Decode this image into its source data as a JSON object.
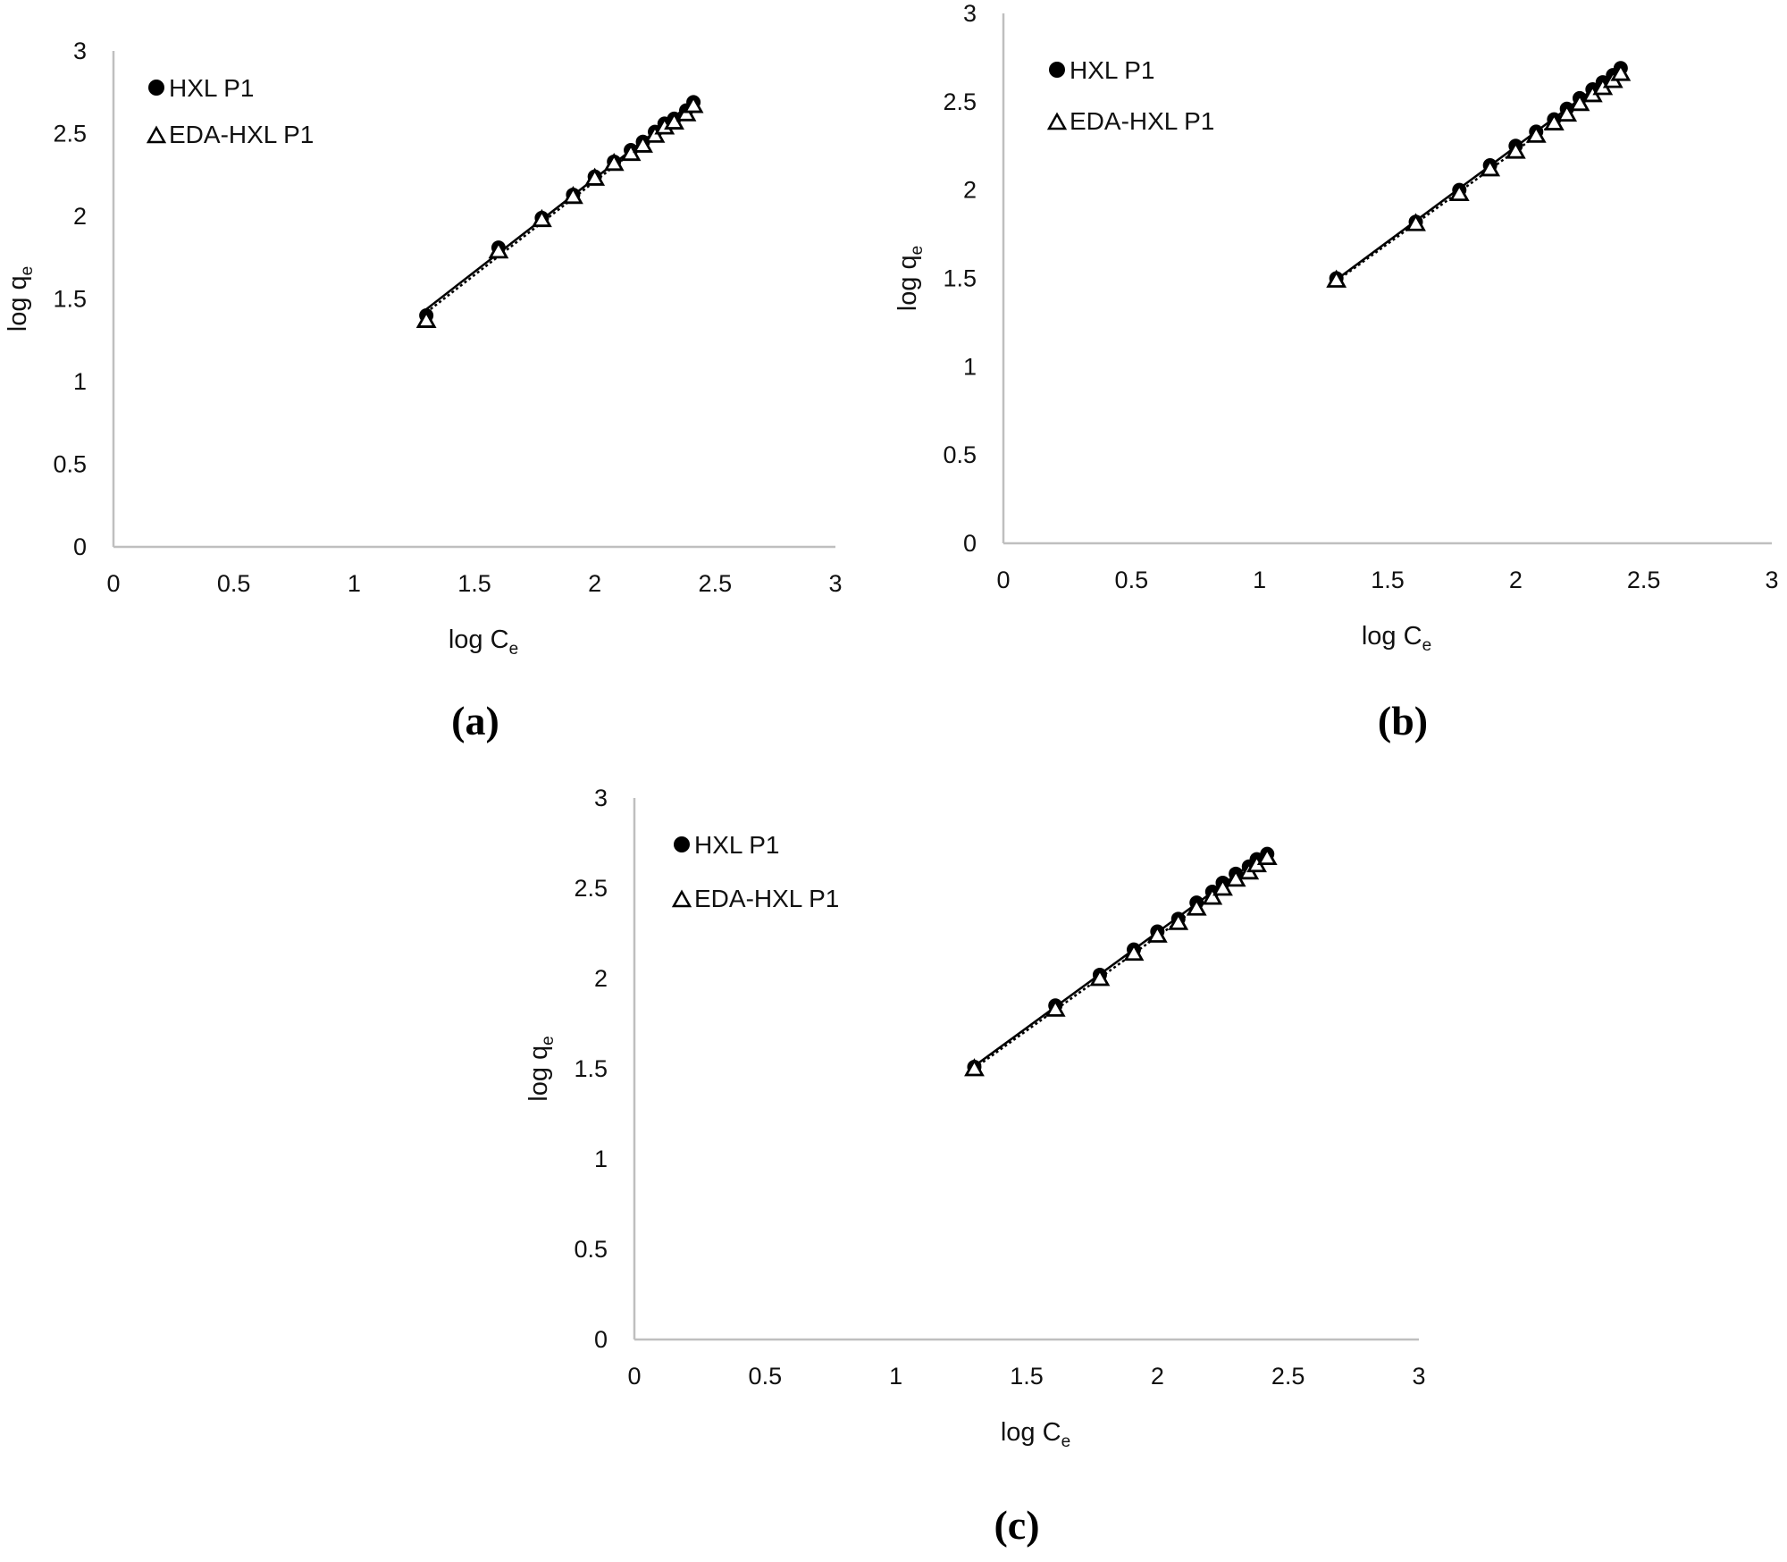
{
  "figure": {
    "panel_labels": [
      "(a)",
      "(b)",
      "(c)"
    ]
  },
  "chart_data": [
    {
      "type": "scatter",
      "panel": "(a)",
      "title": "",
      "xlabel": "log Ce",
      "ylabel": "log qe",
      "xlim": [
        0,
        3
      ],
      "ylim": [
        0,
        3
      ],
      "xticks": [
        "0",
        "0.5",
        "1",
        "1.5",
        "2",
        "2.5",
        "3"
      ],
      "yticks": [
        "0",
        "0.5",
        "1",
        "1.5",
        "2",
        "2.5",
        "3"
      ],
      "grid": false,
      "legend_position": "upper-left",
      "series": [
        {
          "name": "HXLP1",
          "marker": "filled-circle",
          "trendline": "solid linear",
          "x": [
            1.3,
            1.6,
            1.78,
            1.91,
            2.0,
            2.08,
            2.15,
            2.2,
            2.25,
            2.29,
            2.33,
            2.38,
            2.41
          ],
          "y": [
            1.4,
            1.81,
            1.99,
            2.13,
            2.24,
            2.33,
            2.4,
            2.45,
            2.51,
            2.56,
            2.59,
            2.64,
            2.69
          ]
        },
        {
          "name": "EDA-HXLP1",
          "marker": "open-triangle",
          "trendline": "dotted linear",
          "x": [
            1.3,
            1.6,
            1.78,
            1.91,
            2.0,
            2.08,
            2.15,
            2.2,
            2.25,
            2.29,
            2.33,
            2.38,
            2.41
          ],
          "y": [
            1.37,
            1.79,
            1.98,
            2.12,
            2.23,
            2.32,
            2.38,
            2.43,
            2.49,
            2.54,
            2.57,
            2.62,
            2.67
          ]
        }
      ]
    },
    {
      "type": "scatter",
      "panel": "(b)",
      "title": "",
      "xlabel": "log Ce",
      "ylabel": "log qe",
      "xlim": [
        0,
        3
      ],
      "ylim": [
        0,
        3
      ],
      "xticks": [
        "0",
        "0.5",
        "1",
        "1.5",
        "2",
        "2.5",
        "3"
      ],
      "yticks": [
        "0",
        "0.5",
        "1",
        "1.5",
        "2",
        "2.5",
        "3"
      ],
      "grid": false,
      "legend_position": "upper-left",
      "series": [
        {
          "name": "HXLP1",
          "marker": "filled-circle",
          "trendline": "solid linear",
          "x": [
            1.3,
            1.61,
            1.78,
            1.9,
            2.0,
            2.08,
            2.15,
            2.2,
            2.25,
            2.3,
            2.34,
            2.38,
            2.41
          ],
          "y": [
            1.5,
            1.82,
            2.0,
            2.14,
            2.25,
            2.33,
            2.4,
            2.46,
            2.52,
            2.57,
            2.61,
            2.65,
            2.69
          ]
        },
        {
          "name": "EDA-HXLP1",
          "marker": "open-triangle",
          "trendline": "dotted linear",
          "x": [
            1.3,
            1.61,
            1.78,
            1.9,
            2.0,
            2.08,
            2.15,
            2.2,
            2.25,
            2.3,
            2.34,
            2.38,
            2.41
          ],
          "y": [
            1.49,
            1.81,
            1.98,
            2.12,
            2.22,
            2.31,
            2.38,
            2.43,
            2.49,
            2.54,
            2.58,
            2.62,
            2.66
          ]
        }
      ]
    },
    {
      "type": "scatter",
      "panel": "(c)",
      "title": "",
      "xlabel": "log Ce",
      "ylabel": "log qe",
      "xlim": [
        0,
        3
      ],
      "ylim": [
        0,
        3
      ],
      "xticks": [
        "0",
        "0.5",
        "1",
        "1.5",
        "2",
        "2.5",
        "3"
      ],
      "yticks": [
        "0",
        "0.5",
        "1",
        "1.5",
        "2",
        "2.5",
        "3"
      ],
      "grid": false,
      "legend_position": "upper-left",
      "series": [
        {
          "name": "HXLP1",
          "marker": "filled-circle",
          "trendline": "solid linear",
          "x": [
            1.3,
            1.61,
            1.78,
            1.91,
            2.0,
            2.08,
            2.15,
            2.21,
            2.25,
            2.3,
            2.35,
            2.38,
            2.42
          ],
          "y": [
            1.51,
            1.85,
            2.02,
            2.16,
            2.26,
            2.33,
            2.42,
            2.48,
            2.53,
            2.58,
            2.62,
            2.66,
            2.69
          ]
        },
        {
          "name": "EDA-HXLP1",
          "marker": "open-triangle",
          "trendline": "dotted linear",
          "x": [
            1.3,
            1.61,
            1.78,
            1.91,
            2.0,
            2.08,
            2.15,
            2.21,
            2.25,
            2.3,
            2.35,
            2.38,
            2.42
          ],
          "y": [
            1.5,
            1.83,
            2.0,
            2.14,
            2.24,
            2.31,
            2.39,
            2.45,
            2.5,
            2.55,
            2.59,
            2.63,
            2.67
          ]
        }
      ]
    }
  ]
}
